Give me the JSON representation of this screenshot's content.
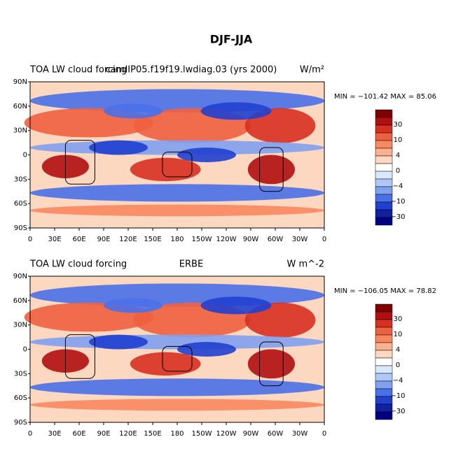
{
  "title": "DJF-JJA",
  "lat_labels": [
    "90N",
    "60N",
    "30N",
    "0",
    "30S",
    "60S",
    "90S"
  ],
  "lon_labels": [
    "0",
    "30E",
    "60E",
    "90E",
    "120E",
    "150E",
    "180",
    "150W",
    "120W",
    "90W",
    "60W",
    "30W",
    "0"
  ],
  "colorbar": {
    "labels": [
      "30",
      "10",
      "4",
      "0",
      "−4",
      "−10",
      "−30"
    ],
    "colors": [
      "#800000",
      "#b01010",
      "#d83020",
      "#f06040",
      "#f88860",
      "#fcb090",
      "#fdd8c0",
      "#ffffff",
      "#d8e8ff",
      "#b0c8f8",
      "#80a0f0",
      "#4a70e8",
      "#2040d0",
      "#1020a0",
      "#000080"
    ]
  },
  "panels": [
    {
      "left_title": "TOA LW cloud forcing",
      "center_title": "camIIP05.f19f19.lwdiag.03 (yrs 2000)",
      "units": "W/m²",
      "minmax": "MIN = −101.42 MAX =  85.06"
    },
    {
      "left_title": "TOA LW cloud forcing",
      "center_title": "ERBE",
      "units": "W m^-2",
      "minmax": "MIN = −106.05 MAX =  78.82"
    }
  ]
}
